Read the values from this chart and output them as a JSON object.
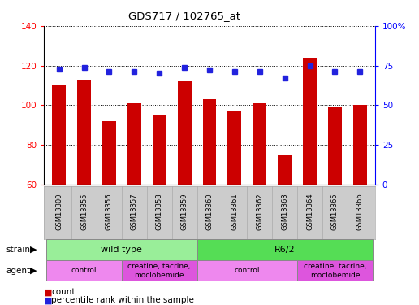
{
  "title": "GDS717 / 102765_at",
  "samples": [
    "GSM13300",
    "GSM13355",
    "GSM13356",
    "GSM13357",
    "GSM13358",
    "GSM13359",
    "GSM13360",
    "GSM13361",
    "GSM13362",
    "GSM13363",
    "GSM13364",
    "GSM13365",
    "GSM13366"
  ],
  "counts": [
    110,
    113,
    92,
    101,
    95,
    112,
    103,
    97,
    101,
    75,
    124,
    99,
    100
  ],
  "percentiles": [
    73,
    74,
    71,
    71,
    70,
    74,
    72,
    71,
    71,
    67,
    75,
    71,
    71
  ],
  "ylim_left": [
    60,
    140
  ],
  "ylim_right": [
    0,
    100
  ],
  "yticks_left": [
    60,
    80,
    100,
    120,
    140
  ],
  "yticks_right": [
    0,
    25,
    50,
    75,
    100
  ],
  "bar_color": "#cc0000",
  "dot_color": "#2222dd",
  "strain_groups": [
    {
      "label": "wild type",
      "start": 0,
      "end": 6,
      "color": "#99ee99"
    },
    {
      "label": "R6/2",
      "start": 6,
      "end": 13,
      "color": "#55dd55"
    }
  ],
  "agent_groups": [
    {
      "label": "control",
      "start": 0,
      "end": 3,
      "color": "#ee88ee"
    },
    {
      "label": "creatine, tacrine,\nmoclobemide",
      "start": 3,
      "end": 6,
      "color": "#dd55dd"
    },
    {
      "label": "control",
      "start": 6,
      "end": 10,
      "color": "#ee88ee"
    },
    {
      "label": "creatine, tacrine,\nmoclobemide",
      "start": 10,
      "end": 13,
      "color": "#dd55dd"
    }
  ],
  "legend_count_color": "#cc0000",
  "legend_percentile_color": "#2222dd",
  "bar_width": 0.55,
  "background_color": "#ffffff",
  "label_bg_color": "#cccccc",
  "label_edge_color": "#aaaaaa"
}
